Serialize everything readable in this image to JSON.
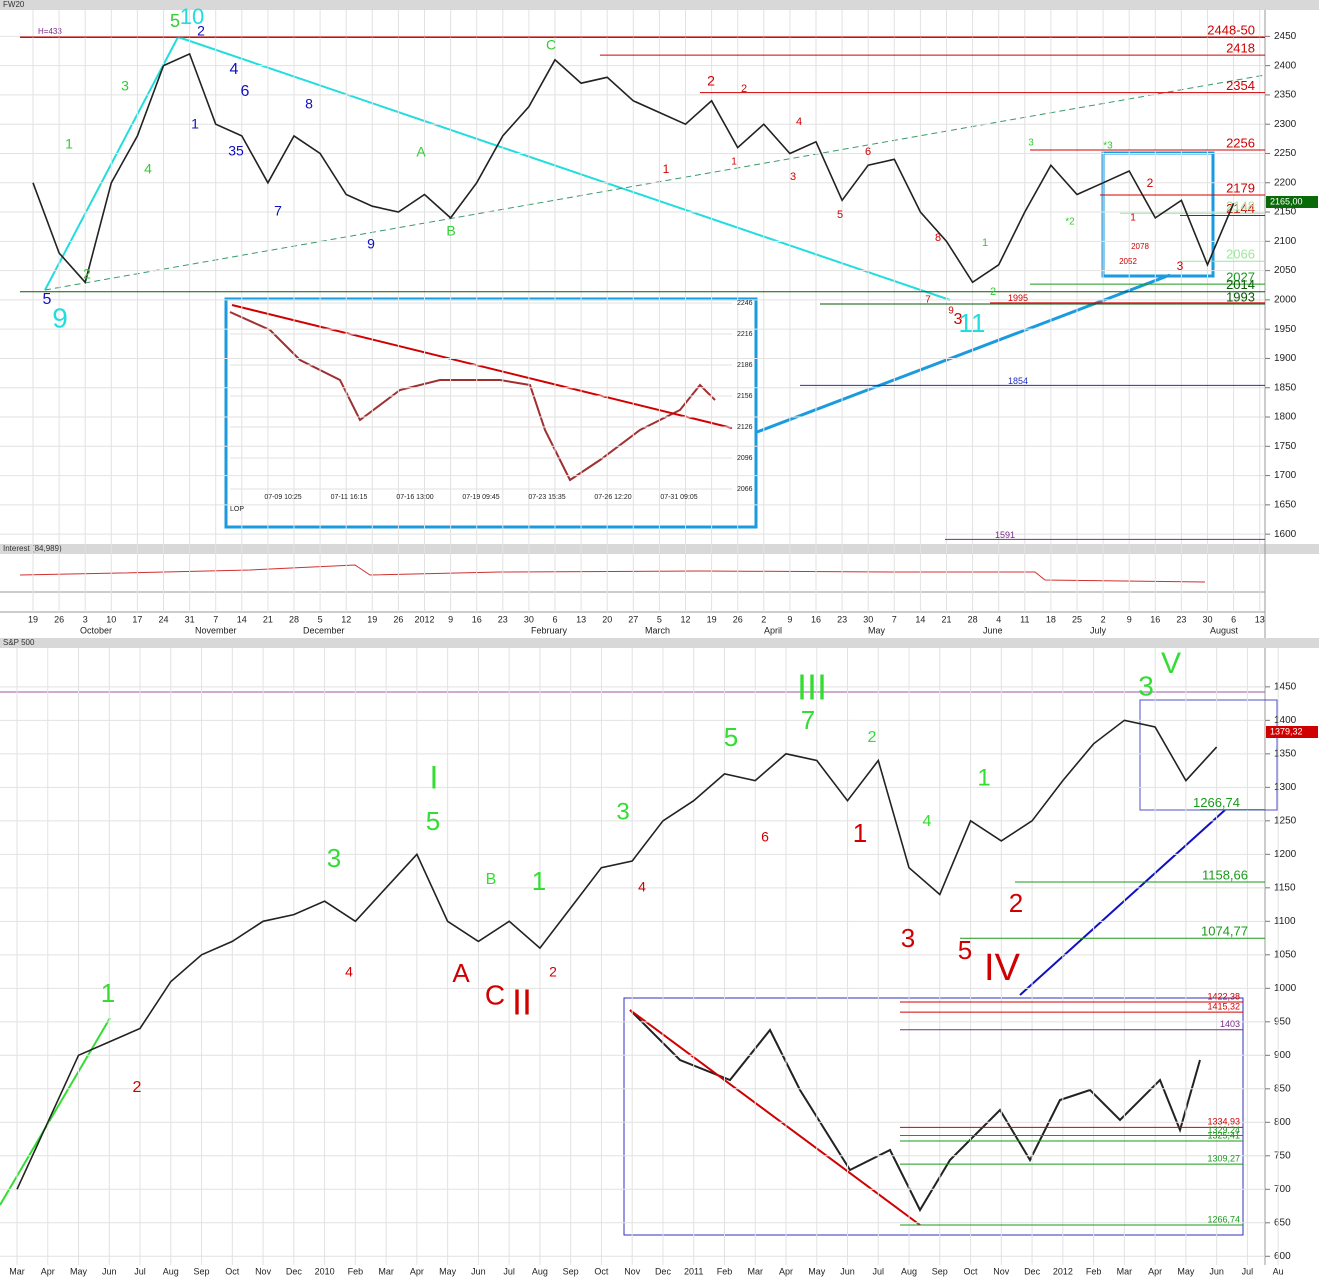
{
  "chart_data": [
    {
      "type": "line",
      "title": "FW20",
      "subtitle": "Interest (84,989)",
      "label": "H=433",
      "last_value_label": "2165,00",
      "categories": [
        "19",
        "26",
        "3",
        "10",
        "17",
        "24",
        "31",
        "7",
        "14",
        "21",
        "28",
        "5",
        "12",
        "19",
        "26",
        "2012",
        "9",
        "16",
        "23",
        "30",
        "6",
        "13",
        "20",
        "27",
        "5",
        "12",
        "19",
        "26",
        "2",
        "9",
        "16",
        "23",
        "30",
        "7",
        "14",
        "21",
        "28",
        "4",
        "11",
        "18",
        "25",
        "2",
        "9",
        "16",
        "23",
        "30",
        "6",
        "13"
      ],
      "months": [
        "October",
        "November",
        "December",
        "February",
        "March",
        "April",
        "May",
        "June",
        "July",
        "August"
      ],
      "series": [
        {
          "name": "FW20",
          "color": "#222222",
          "values": [
            2200,
            2080,
            2030,
            2200,
            2280,
            2400,
            2420,
            2300,
            2280,
            2200,
            2280,
            2250,
            2180,
            2160,
            2150,
            2180,
            2140,
            2200,
            2280,
            2330,
            2410,
            2370,
            2380,
            2340,
            2320,
            2300,
            2340,
            2260,
            2300,
            2250,
            2270,
            2170,
            2230,
            2240,
            2150,
            2100,
            2030,
            2060,
            2150,
            2230,
            2180,
            2200,
            2220,
            2140,
            2170,
            2060,
            2165,
            null
          ]
        }
      ],
      "ylim": [
        1590,
        2495
      ],
      "yticks": [
        1600,
        1650,
        1700,
        1750,
        1800,
        1850,
        1900,
        1950,
        2000,
        2050,
        2100,
        2150,
        2200,
        2250,
        2300,
        2350,
        2400,
        2450
      ],
      "grid": true,
      "levels": [
        {
          "value": 2449,
          "label": "2448-50",
          "color": "#d00000"
        },
        {
          "value": 2418,
          "color": "#d00000"
        },
        {
          "value": 2354,
          "color": "#d00000"
        },
        {
          "value": 2256,
          "color": "#d00000"
        },
        {
          "value": 2144,
          "color": "#d00000"
        },
        {
          "value": 2179,
          "color": "#d00000"
        },
        {
          "value": 2148,
          "color": "#9be89b"
        },
        {
          "value": 2066,
          "color": "#9be89b"
        },
        {
          "value": 2027,
          "color": "#1a9a1a"
        },
        {
          "value": 2014,
          "color": "#0a5a0a"
        },
        {
          "value": 1993,
          "color": "#0a5a0a"
        },
        {
          "value": 1995,
          "color": "#d00000"
        },
        {
          "value": 1854,
          "color": "#2030c0"
        },
        {
          "value": 1591,
          "color": "#7a2a8a"
        }
      ],
      "annotations": [
        {
          "text": "9",
          "color": "#22dddd"
        },
        {
          "text": "5",
          "color": "#1010c0"
        },
        {
          "text": "10",
          "color": "#22dddd"
        },
        {
          "text": "5",
          "color": "#33cc33"
        },
        {
          "text": "2",
          "color": "#1010c0"
        },
        {
          "text": "1",
          "color": "#33cc33"
        },
        {
          "text": "3",
          "color": "#33cc33"
        },
        {
          "text": "4",
          "color": "#33cc33"
        },
        {
          "text": "2",
          "color": "#33cc33"
        },
        {
          "text": "1",
          "color": "#1010c0"
        },
        {
          "text": "35",
          "color": "#1010c0"
        },
        {
          "text": "4",
          "color": "#1010c0"
        },
        {
          "text": "6",
          "color": "#1010c0"
        },
        {
          "text": "7",
          "color": "#1010c0"
        },
        {
          "text": "8",
          "color": "#1010c0"
        },
        {
          "text": "9",
          "color": "#1010c0"
        },
        {
          "text": "A",
          "color": "#33cc33"
        },
        {
          "text": "B",
          "color": "#33cc33"
        },
        {
          "text": "C",
          "color": "#33cc33"
        },
        {
          "text": "2",
          "color": "#d00000"
        },
        {
          "text": "2",
          "color": "#d00000"
        },
        {
          "text": "1",
          "color": "#d00000"
        },
        {
          "text": "1",
          "color": "#d00000"
        },
        {
          "text": "3",
          "color": "#d00000"
        },
        {
          "text": "4",
          "color": "#d00000"
        },
        {
          "text": "5",
          "color": "#d00000"
        },
        {
          "text": "6",
          "color": "#d00000"
        },
        {
          "text": "8",
          "color": "#d00000"
        },
        {
          "text": "7",
          "color": "#d00000"
        },
        {
          "text": "9",
          "color": "#d00000"
        },
        {
          "text": "3",
          "color": "#d00000"
        },
        {
          "text": "11",
          "color": "#22dddd"
        },
        {
          "text": "1",
          "color": "#33cc33"
        },
        {
          "text": "2",
          "color": "#33cc33"
        },
        {
          "text": "3",
          "color": "#33cc33"
        },
        {
          "text": "*3",
          "color": "#33cc33"
        },
        {
          "text": "*2",
          "color": "#33cc33"
        },
        {
          "text": "2",
          "color": "#d00000"
        },
        {
          "text": "1",
          "color": "#d00000"
        },
        {
          "text": "3",
          "color": "#d00000"
        },
        {
          "text": "2078",
          "color": "#d00000"
        },
        {
          "text": "2052",
          "color": "#d00000"
        }
      ],
      "inset": {
        "yticks": [
          2246,
          2216,
          2186,
          2156,
          2126,
          2096,
          2066
        ],
        "xlabels": [
          "07-09 10:25",
          "07-11 16:15",
          "07-16 13:00",
          "07-19 09:45",
          "07-23 15:35",
          "07-26 12:20",
          "07-31 09:05"
        ],
        "label": "LOP"
      }
    },
    {
      "type": "line",
      "title": "S&P 500",
      "last_value_label": "1379,32",
      "categories": [
        "Mar",
        "Apr",
        "May",
        "Jun",
        "Jul",
        "Aug",
        "Sep",
        "Oct",
        "Nov",
        "Dec",
        "2010",
        "Feb",
        "Mar",
        "Apr",
        "May",
        "Jun",
        "Jul",
        "Aug",
        "Sep",
        "Oct",
        "Nov",
        "Dec",
        "2011",
        "Feb",
        "Mar",
        "Apr",
        "May",
        "Jun",
        "Jul",
        "Aug",
        "Sep",
        "Oct",
        "Nov",
        "Dec",
        "2012",
        "Feb",
        "Mar",
        "Apr",
        "May",
        "Jun",
        "Jul",
        "Au"
      ],
      "series": [
        {
          "name": "S&P 500",
          "color": "#222222",
          "values": [
            700,
            800,
            900,
            920,
            940,
            1010,
            1050,
            1070,
            1100,
            1110,
            1130,
            1100,
            1150,
            1200,
            1100,
            1070,
            1100,
            1060,
            1120,
            1180,
            1190,
            1250,
            1280,
            1320,
            1310,
            1350,
            1340,
            1280,
            1340,
            1180,
            1140,
            1250,
            1220,
            1250,
            1310,
            1365,
            1400,
            1390,
            1310,
            1360,
            null,
            null
          ]
        }
      ],
      "ylim": [
        587,
        1505
      ],
      "yticks": [
        600,
        650,
        700,
        750,
        800,
        850,
        900,
        950,
        1000,
        1050,
        1100,
        1150,
        1200,
        1250,
        1300,
        1350,
        1400,
        1450
      ],
      "grid": true,
      "levels": [
        {
          "value": 1266.74,
          "label": "1266,74",
          "color": "#1a9a1a"
        },
        {
          "value": 1158.66,
          "label": "1158,66",
          "color": "#1a9a1a"
        },
        {
          "value": 1074.77,
          "label": "1074,77",
          "color": "#1a9a1a"
        }
      ],
      "inset_levels": [
        {
          "value": 1422.38,
          "label": "1422,38",
          "color": "#d00000"
        },
        {
          "value": 1415.32,
          "label": "1415,32",
          "color": "#d00000"
        },
        {
          "value": 1403,
          "color": "#7a2a8a"
        },
        {
          "value": 1334.93,
          "label": "1334,93",
          "color": "#d00000"
        },
        {
          "value": 1329.24,
          "label": "1329,24",
          "color": "#1a9a1a"
        },
        {
          "value": 1325.41,
          "label": "1325,41",
          "color": "#1a9a1a"
        },
        {
          "value": 1309.27,
          "label": "1309,27",
          "color": "#1a9a1a"
        },
        {
          "value": 1266.74,
          "label": "1266,74",
          "color": "#1a9a1a"
        }
      ],
      "annotations": [
        {
          "text": "1",
          "color": "#33dd33"
        },
        {
          "text": "2",
          "color": "#d00000"
        },
        {
          "text": "3",
          "color": "#33dd33"
        },
        {
          "text": "4",
          "color": "#d00000"
        },
        {
          "text": "I",
          "color": "#33dd33"
        },
        {
          "text": "5",
          "color": "#33dd33"
        },
        {
          "text": "A",
          "color": "#d00000"
        },
        {
          "text": "B",
          "color": "#33dd33"
        },
        {
          "text": "C",
          "color": "#d00000"
        },
        {
          "text": "II",
          "color": "#d00000"
        },
        {
          "text": "1",
          "color": "#33dd33"
        },
        {
          "text": "2",
          "color": "#d00000"
        },
        {
          "text": "3",
          "color": "#33dd33"
        },
        {
          "text": "4",
          "color": "#d00000"
        },
        {
          "text": "5",
          "color": "#33dd33"
        },
        {
          "text": "6",
          "color": "#d00000"
        },
        {
          "text": "III",
          "color": "#33dd33"
        },
        {
          "text": "7",
          "color": "#33dd33"
        },
        {
          "text": "2",
          "color": "#33dd33"
        },
        {
          "text": "1",
          "color": "#d00000"
        },
        {
          "text": "3",
          "color": "#d00000"
        },
        {
          "text": "4",
          "color": "#33dd33"
        },
        {
          "text": "5",
          "color": "#d00000"
        },
        {
          "text": "IV",
          "color": "#d00000"
        },
        {
          "text": "1",
          "color": "#33dd33"
        },
        {
          "text": "2",
          "color": "#d00000"
        },
        {
          "text": "3",
          "color": "#33dd33"
        },
        {
          "text": "V",
          "color": "#33dd33"
        }
      ]
    }
  ]
}
